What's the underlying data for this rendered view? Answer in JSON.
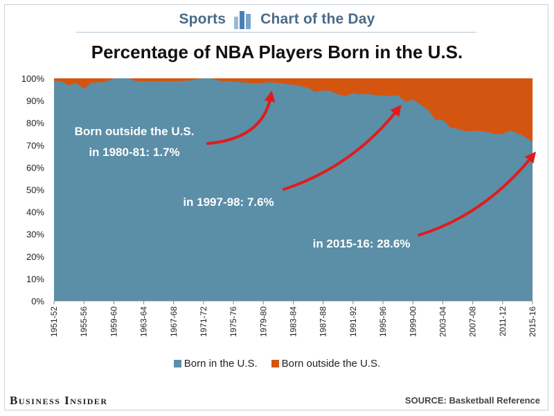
{
  "header": {
    "left_text": "Sports",
    "right_text": "Chart of the Day"
  },
  "title": "Percentage of NBA Players Born in the U.S.",
  "chart_data": {
    "type": "area",
    "title": "Percentage of NBA Players Born in the U.S.",
    "y_ticks": [
      "0%",
      "10%",
      "20%",
      "30%",
      "40%",
      "50%",
      "60%",
      "70%",
      "80%",
      "90%",
      "100%"
    ],
    "ylim": [
      0,
      100
    ],
    "x_tick_labels": [
      "1951-52",
      "1955-56",
      "1959-60",
      "1963-64",
      "1967-68",
      "1971-72",
      "1975-76",
      "1979-80",
      "1983-84",
      "1987-88",
      "1991-92",
      "1995-96",
      "1999-00",
      "2003-04",
      "2007-08",
      "2011-12",
      "2015-16"
    ],
    "x": [
      "1951-52",
      "1952-53",
      "1953-54",
      "1954-55",
      "1955-56",
      "1956-57",
      "1957-58",
      "1958-59",
      "1959-60",
      "1960-61",
      "1961-62",
      "1962-63",
      "1963-64",
      "1964-65",
      "1965-66",
      "1966-67",
      "1967-68",
      "1968-69",
      "1969-70",
      "1970-71",
      "1971-72",
      "1972-73",
      "1973-74",
      "1974-75",
      "1975-76",
      "1976-77",
      "1977-78",
      "1978-79",
      "1979-80",
      "1980-81",
      "1981-82",
      "1982-83",
      "1983-84",
      "1984-85",
      "1985-86",
      "1986-87",
      "1987-88",
      "1988-89",
      "1989-90",
      "1990-91",
      "1991-92",
      "1992-93",
      "1993-94",
      "1994-95",
      "1995-96",
      "1996-97",
      "1997-98",
      "1998-99",
      "1999-00",
      "2000-01",
      "2001-02",
      "2002-03",
      "2003-04",
      "2004-05",
      "2005-06",
      "2006-07",
      "2007-08",
      "2008-09",
      "2009-10",
      "2010-11",
      "2011-12",
      "2012-13",
      "2013-14",
      "2014-15",
      "2015-16"
    ],
    "series": [
      {
        "name": "Born in the U.S.",
        "color": "#5b8ea7",
        "values": [
          98.9,
          98.6,
          96.9,
          97.8,
          95.3,
          98.0,
          98.2,
          98.6,
          100,
          100,
          100,
          98.7,
          98.6,
          98.6,
          98.6,
          98.6,
          98.8,
          98.8,
          99.0,
          99.6,
          100,
          100,
          99.0,
          98.6,
          98.6,
          98.3,
          98.0,
          97.7,
          98.0,
          98.3,
          97.9,
          97.5,
          97.1,
          96.7,
          95.6,
          94.0,
          94.6,
          94.3,
          92.8,
          92.1,
          93.4,
          92.8,
          93.0,
          92.5,
          92.3,
          92.1,
          92.4,
          89.5,
          90.4,
          88.3,
          86.0,
          81.4,
          81.4,
          78.0,
          77.3,
          76.2,
          76.5,
          76.3,
          75.9,
          74.9,
          75.0,
          76.6,
          75.4,
          73.7,
          71.4
        ]
      },
      {
        "name": "Born outside the U.S.",
        "color": "#d4550f",
        "values": [
          1.1,
          1.4,
          3.1,
          2.2,
          4.7,
          2.0,
          1.8,
          1.4,
          0,
          0,
          0,
          1.3,
          1.4,
          1.4,
          1.4,
          1.4,
          1.2,
          1.2,
          1.0,
          0.4,
          0,
          0,
          1.0,
          1.4,
          1.4,
          1.7,
          2.0,
          2.3,
          2.0,
          1.7,
          2.1,
          2.5,
          2.9,
          3.3,
          4.4,
          6.0,
          5.4,
          5.7,
          7.2,
          7.9,
          6.6,
          7.2,
          7.0,
          7.5,
          7.7,
          7.9,
          7.6,
          10.5,
          9.6,
          11.7,
          14.0,
          18.6,
          18.6,
          22.0,
          22.7,
          23.8,
          23.5,
          23.7,
          24.1,
          25.1,
          25.0,
          23.4,
          24.6,
          26.3,
          28.6
        ]
      }
    ],
    "annotations": [
      {
        "lines": [
          "Born outside the U.S.",
          "in 1980-81: 1.7%"
        ],
        "x": "1980-81"
      },
      {
        "lines": [
          "in 1997-98: 7.6%"
        ],
        "x": "1997-98"
      },
      {
        "lines": [
          "in 2015-16: 28.6%"
        ],
        "x": "2015-16"
      }
    ],
    "annotation_color": "#e11b1b",
    "grid": false
  },
  "legend": [
    {
      "label": "Born in the U.S.",
      "color": "#5b8ea7"
    },
    {
      "label": "Born outside the U.S.",
      "color": "#d4550f"
    }
  ],
  "footer": {
    "brand": "Business Insider",
    "source": "SOURCE: Basketball Reference"
  }
}
